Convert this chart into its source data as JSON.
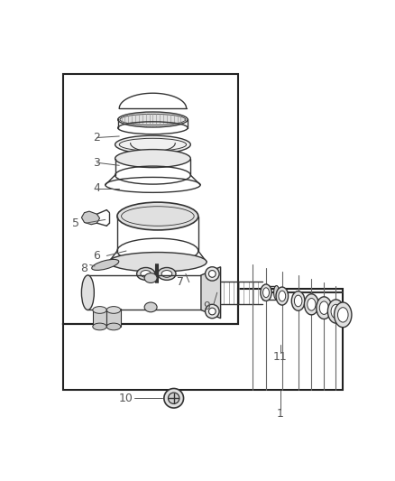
{
  "background": "#ffffff",
  "border_color": "#222222",
  "line_color": "#333333",
  "label_color": "#555555",
  "figsize": [
    4.38,
    5.33
  ],
  "dpi": 100,
  "xlim": [
    0,
    438
  ],
  "ylim": [
    0,
    533
  ]
}
